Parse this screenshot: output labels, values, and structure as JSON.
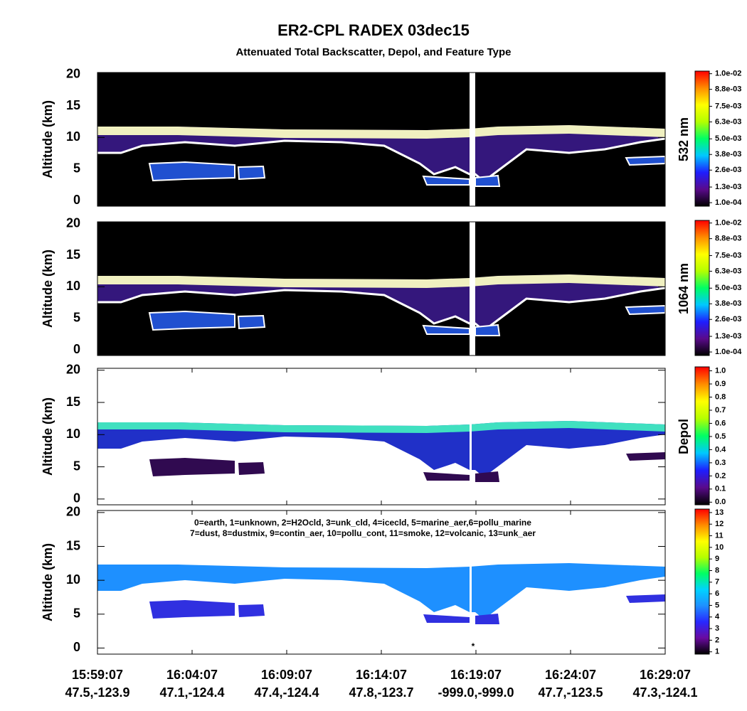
{
  "title": "ER2-CPL RADEX 03dec15",
  "subtitle": "Attenuated Total Backscatter, Depol, and Feature Type",
  "x_axis": {
    "times": [
      "15:59:07",
      "16:04:07",
      "16:09:07",
      "16:14:07",
      "16:19:07",
      "16:24:07",
      "16:29:07"
    ],
    "locations": [
      "47.5,-123.9",
      "47.1,-124.4",
      "47.4,-124.4",
      "47.8,-123.7",
      "-999.0,-999.0",
      "47.7,-123.5",
      "47.3,-124.1"
    ]
  },
  "chart_data": [
    {
      "type": "heatmap",
      "ylabel": "Altitude (km)",
      "ylim": [
        -0.9,
        20.3
      ],
      "yticks": [
        0,
        5,
        10,
        15,
        20
      ],
      "background": "#000000",
      "colorbar": {
        "label": "532 nm",
        "clim": [
          -0.00017,
          0.0102
        ],
        "colors": [
          "#000000",
          "#5a0a8c",
          "#1e1eff",
          "#00c8ff",
          "#00ff64",
          "#b4ff00",
          "#ffff00",
          "#ff8c00",
          "#ff0000"
        ],
        "ticks": [
          {
            "value": 0.01,
            "label": "1.0e-02"
          },
          {
            "value": 0.0088,
            "label": "8.8e-03"
          },
          {
            "value": 0.0075,
            "label": "7.5e-03"
          },
          {
            "value": 0.0063,
            "label": "6.3e-03"
          },
          {
            "value": 0.005,
            "label": "5.0e-03"
          },
          {
            "value": 0.0038,
            "label": "3.8e-03"
          },
          {
            "value": 0.0026,
            "label": "2.6e-03"
          },
          {
            "value": 0.0013,
            "label": "1.3e-03"
          },
          {
            "value": 0.0001,
            "label": "1.0e-04"
          }
        ]
      }
    },
    {
      "type": "heatmap",
      "ylabel": "Altitude (km)",
      "ylim": [
        -0.9,
        20.3
      ],
      "yticks": [
        0,
        5,
        10,
        15,
        20
      ],
      "background": "#000000",
      "colorbar": {
        "label": "1064 nm",
        "clim": [
          -0.00017,
          0.0102
        ],
        "colors": [
          "#000000",
          "#5a0a8c",
          "#1e1eff",
          "#00c8ff",
          "#00ff64",
          "#b4ff00",
          "#ffff00",
          "#ff8c00",
          "#ff0000"
        ],
        "ticks": [
          {
            "value": 0.01,
            "label": "1.0e-02"
          },
          {
            "value": 0.0088,
            "label": "8.8e-03"
          },
          {
            "value": 0.0075,
            "label": "7.5e-03"
          },
          {
            "value": 0.0063,
            "label": "6.3e-03"
          },
          {
            "value": 0.005,
            "label": "5.0e-03"
          },
          {
            "value": 0.0038,
            "label": "3.8e-03"
          },
          {
            "value": 0.0026,
            "label": "2.6e-03"
          },
          {
            "value": 0.0013,
            "label": "1.3e-03"
          },
          {
            "value": 0.0001,
            "label": "1.0e-04"
          }
        ]
      }
    },
    {
      "type": "heatmap",
      "ylabel": "Altitude (km)",
      "ylim": [
        -0.9,
        20.3
      ],
      "yticks": [
        0,
        5,
        10,
        15,
        20
      ],
      "background": "#ffffff",
      "colorbar": {
        "label": "Depol",
        "clim": [
          -0.02,
          1.03
        ],
        "colors": [
          "#000000",
          "#5a0a8c",
          "#1e1eff",
          "#00c8ff",
          "#00ff64",
          "#b4ff00",
          "#ffff00",
          "#ff8c00",
          "#ff0000"
        ],
        "ticks": [
          {
            "value": 1,
            "label": "1.0"
          },
          0.9,
          0.8,
          0.7,
          0.6,
          0.5,
          0.4,
          0.3,
          0.2,
          0.1,
          {
            "value": 0,
            "label": "0.0"
          }
        ]
      }
    },
    {
      "type": "heatmap",
      "ylabel": "Altitude (km)",
      "ylim": [
        -0.9,
        20.3
      ],
      "yticks": [
        0,
        5,
        10,
        15,
        20
      ],
      "background": "#ffffff",
      "legend_text": [
        "0=earth, 1=unknown, 2=H2Ocld, 3=unk_cld, 4=icecld, 5=marine_aer,6=pollu_marine",
        "7=dust, 8=dustmix, 9=contin_aer, 10=pollu_cont, 11=smoke, 12=volcanic, 13=unk_aer"
      ],
      "annotation": "*",
      "colorbar": {
        "label": "",
        "clim": [
          0.8,
          13.3
        ],
        "colors": [
          "#000000",
          "#6a0aa0",
          "#2828ff",
          "#1e90ff",
          "#00d2ff",
          "#00ff64",
          "#b4ff00",
          "#ffff00",
          "#ff8c00",
          "#ff0000"
        ],
        "ticks": [
          13,
          12,
          11,
          10,
          9,
          8,
          7,
          6,
          5,
          4,
          3,
          2,
          1
        ]
      }
    }
  ]
}
